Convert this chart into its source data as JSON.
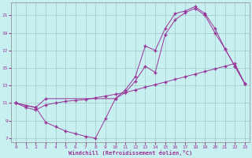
{
  "xlabel": "Windchill (Refroidissement éolien,°C)",
  "bg_color": "#c8f0f0",
  "line_color": "#993399",
  "grid_color": "#a0c8c8",
  "text_color": "#993399",
  "xlim": [
    -0.5,
    23.5
  ],
  "ylim": [
    6.5,
    22.5
  ],
  "xticks": [
    0,
    1,
    2,
    3,
    4,
    5,
    6,
    7,
    8,
    9,
    10,
    11,
    12,
    13,
    14,
    15,
    16,
    17,
    18,
    19,
    20,
    21,
    22,
    23
  ],
  "yticks": [
    7,
    9,
    11,
    13,
    15,
    17,
    19,
    21
  ],
  "curve1_x": [
    0,
    1,
    2,
    3,
    4,
    5,
    6,
    7,
    8,
    9,
    10,
    11,
    12,
    13,
    14,
    15,
    16,
    17,
    18,
    19,
    20,
    21,
    22,
    23
  ],
  "curve1_y": [
    11,
    10.7,
    10.5,
    8.8,
    8.3,
    7.8,
    7.5,
    7.2,
    7.0,
    9.2,
    11.5,
    12.2,
    13.5,
    15.2,
    14.5,
    18.8,
    20.5,
    21.3,
    21.8,
    21.0,
    19.0,
    17.2,
    15.2,
    13.2
  ],
  "curve2_x": [
    0,
    1,
    2,
    3,
    4,
    5,
    6,
    7,
    8,
    9,
    10,
    11,
    12,
    13,
    14,
    15,
    16,
    17,
    18,
    19,
    20,
    21,
    22,
    23
  ],
  "curve2_y": [
    11,
    10.5,
    10.2,
    10.8,
    11.0,
    11.2,
    11.3,
    11.4,
    11.6,
    11.8,
    12.0,
    12.2,
    12.5,
    12.8,
    13.1,
    13.4,
    13.7,
    14.0,
    14.3,
    14.6,
    14.9,
    15.2,
    15.5,
    13.2
  ],
  "curve3_x": [
    0,
    2,
    3,
    10,
    11,
    12,
    13,
    14,
    15,
    16,
    17,
    18,
    19,
    20,
    21,
    22,
    23
  ],
  "curve3_y": [
    11,
    10.5,
    11.5,
    11.5,
    12.5,
    14.0,
    17.5,
    17.0,
    19.5,
    21.2,
    21.5,
    22.0,
    21.2,
    19.5,
    17.2,
    15.2,
    13.2
  ]
}
